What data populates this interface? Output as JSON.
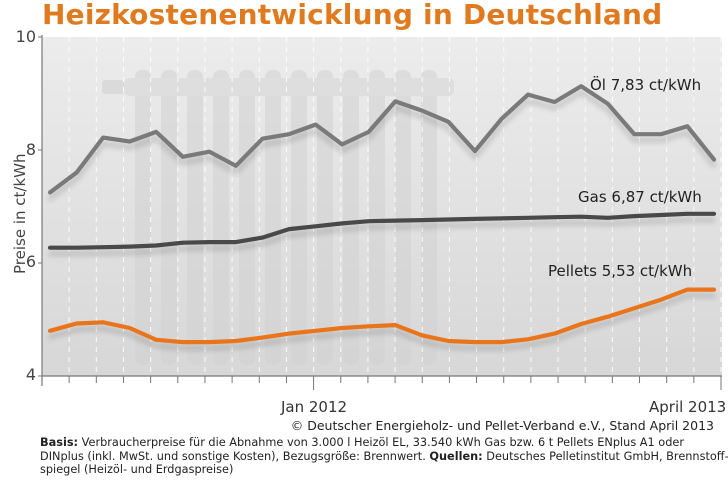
{
  "chart_data": {
    "type": "line",
    "title": "Heizkostenentwicklung in Deutschland",
    "xlabel": "",
    "ylabel": "Preise in ct/kWh",
    "ylim": [
      4,
      10
    ],
    "yticks": [
      "4",
      "6",
      "8",
      "10"
    ],
    "ytick_values": [
      4,
      6,
      8,
      10
    ],
    "x": [
      "Mar 2011",
      "Apr 2011",
      "May 2011",
      "Jun 2011",
      "Jul 2011",
      "Aug 2011",
      "Sep 2011",
      "Oct 2011",
      "Nov 2011",
      "Dec 2011",
      "Jan 2012",
      "Feb 2012",
      "Mar 2012",
      "Apr 2012",
      "May 2012",
      "Jun 2012",
      "Jul 2012",
      "Aug 2012",
      "Sep 2012",
      "Oct 2012",
      "Nov 2012",
      "Dec 2012",
      "Jan 2013",
      "Feb 2013",
      "Mar 2013",
      "Apr 2013"
    ],
    "xtick_labels": [
      {
        "label": "Jan 2012",
        "index": 10
      },
      {
        "label": "April 2013",
        "index": 25
      }
    ],
    "grid": "vertical dashed monthly",
    "series": [
      {
        "name": "Öl",
        "label": "Öl  7,83 ct/kWh",
        "color": "#7a7a7a",
        "values": [
          7.25,
          7.6,
          8.22,
          8.15,
          8.32,
          7.88,
          7.97,
          7.72,
          8.2,
          8.28,
          8.45,
          8.1,
          8.32,
          8.86,
          8.7,
          8.5,
          7.98,
          8.55,
          8.98,
          8.85,
          9.13,
          8.82,
          8.28,
          8.28,
          8.42,
          7.83
        ]
      },
      {
        "name": "Gas",
        "label": "Gas  6,87 ct/kWh",
        "color": "#4a4a4a",
        "values": [
          6.27,
          6.27,
          6.28,
          6.29,
          6.31,
          6.36,
          6.37,
          6.37,
          6.45,
          6.6,
          6.65,
          6.7,
          6.74,
          6.75,
          6.76,
          6.77,
          6.78,
          6.79,
          6.8,
          6.81,
          6.82,
          6.8,
          6.83,
          6.85,
          6.87,
          6.87
        ]
      },
      {
        "name": "Pellets",
        "label": "Pellets  5,53 ct/kWh",
        "color": "#e8751a",
        "values": [
          4.8,
          4.93,
          4.95,
          4.85,
          4.64,
          4.6,
          4.6,
          4.62,
          4.68,
          4.75,
          4.8,
          4.85,
          4.88,
          4.9,
          4.72,
          4.62,
          4.6,
          4.6,
          4.65,
          4.75,
          4.92,
          5.05,
          5.2,
          5.35,
          5.53,
          5.53
        ]
      }
    ]
  },
  "header": {
    "title": "Heizkostenentwicklung in Deutschland"
  },
  "labels": {
    "oel": "Öl  7,83 ct/kWh",
    "gas": "Gas  6,87 ct/kWh",
    "pellets": "Pellets  5,53 ct/kWh"
  },
  "footer": {
    "copyright": "© Deutscher Energieholz- und Pellet-Verband e.V., Stand April 2013",
    "basis_label": "Basis:",
    "basis_text": " Verbraucherpreise für die Abnahme von 3.000 l Heizöl EL, 33.540 kWh Gas bzw. 6 t Pellets ENplus A1 oder DINplus (inkl. MwSt. und sonstige Kosten), Bezugsgröße: Brennwert. ",
    "sources_label": "Quellen:",
    "sources_text": " Deutsches Pelletinstitut GmbH, Brennstoff-spiegel (Heizöl- und Erdgaspreise)"
  },
  "colors": {
    "title": "#e07a1f",
    "plot_background": "#e6e6e6",
    "axis": "#777777"
  }
}
